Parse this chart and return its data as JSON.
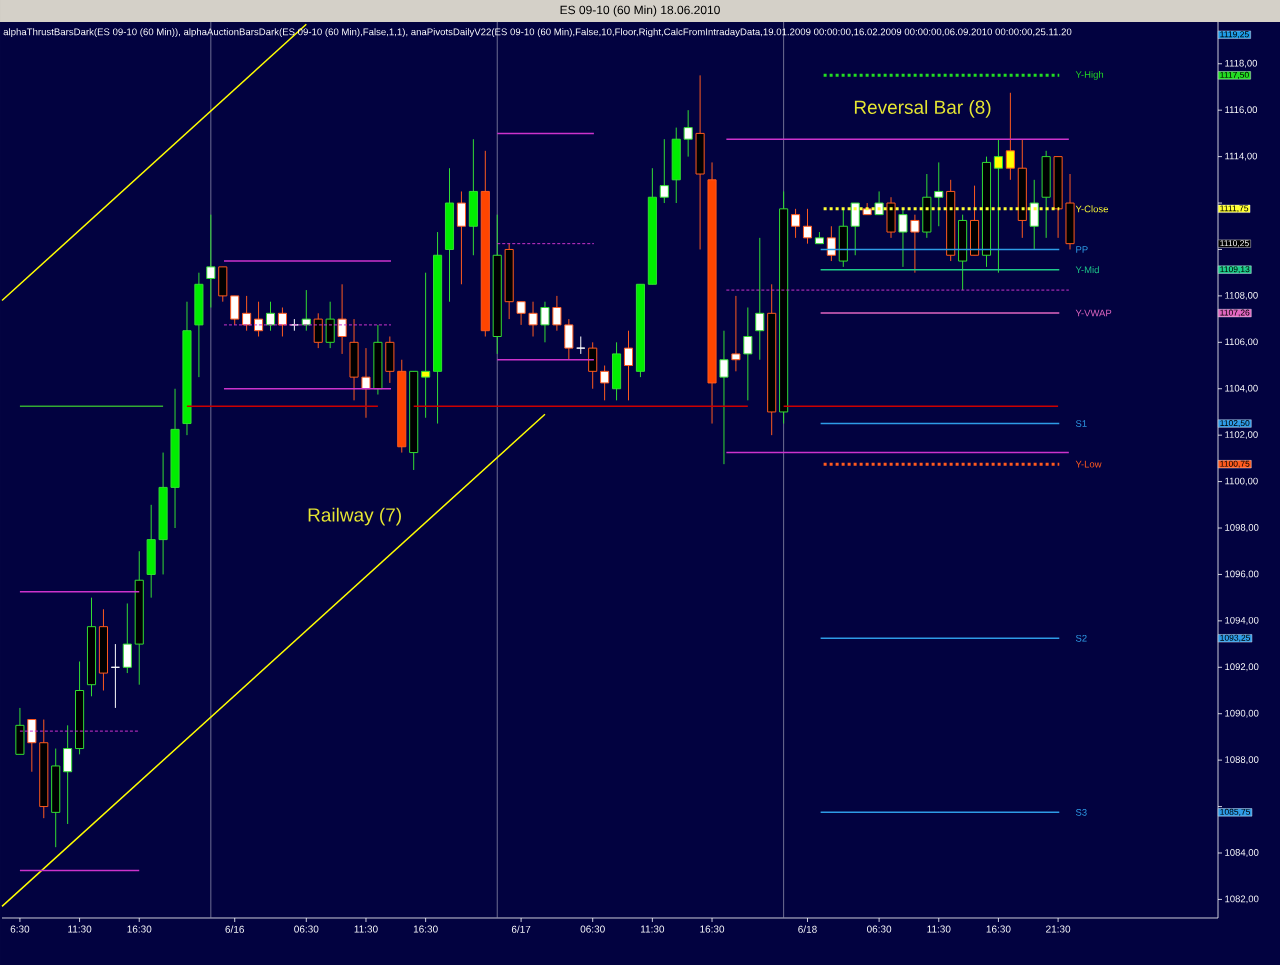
{
  "chart_data": {
    "type": "candlestick",
    "title": "ES 09-10 (60 Min)  18.06.2010",
    "subtitle": "alphaThrustBarsDark(ES 09-10 (60 Min)), alphaAuctionBarsDark(ES 09-10 (60 Min),False,1,1), anaPivotsDailyV22(ES 09-10 (60 Min),False,10,Floor,Right,CalcFromIntradayData,19.01.2009 00:00:00,16.02.2009 00:00:00,06.09.2010 00:00:00,25.11.20",
    "x": [
      "2010-06-15T06:30",
      "2010-06-15T07:30",
      "2010-06-15T08:30",
      "2010-06-15T09:30",
      "2010-06-15T10:30",
      "2010-06-15T11:30",
      "2010-06-15T12:30",
      "2010-06-15T13:30",
      "2010-06-15T14:30",
      "2010-06-15T15:30",
      "2010-06-15T16:30",
      "2010-06-15T17:30",
      "2010-06-15T18:30",
      "2010-06-15T19:30",
      "2010-06-15T20:30",
      "2010-06-15T21:30",
      "2010-06-15T22:30",
      "2010-06-15T23:30",
      "2010-06-16T00:30",
      "2010-06-16T01:30",
      "2010-06-16T02:30",
      "2010-06-16T03:30",
      "2010-06-16T04:30",
      "2010-06-16T05:30",
      "2010-06-16T06:30",
      "2010-06-16T07:30",
      "2010-06-16T08:30",
      "2010-06-16T09:30",
      "2010-06-16T10:30",
      "2010-06-16T11:30",
      "2010-06-16T12:30",
      "2010-06-16T13:30",
      "2010-06-16T14:30",
      "2010-06-16T15:30",
      "2010-06-16T16:30",
      "2010-06-16T17:30",
      "2010-06-16T18:30",
      "2010-06-16T19:30",
      "2010-06-16T20:30",
      "2010-06-16T21:30",
      "2010-06-16T22:30",
      "2010-06-16T23:30",
      "2010-06-17T00:30",
      "2010-06-17T01:30",
      "2010-06-17T02:30",
      "2010-06-17T03:30",
      "2010-06-17T04:30",
      "2010-06-17T05:30",
      "2010-06-17T06:30",
      "2010-06-17T07:30",
      "2010-06-17T08:30",
      "2010-06-17T09:30",
      "2010-06-17T10:30",
      "2010-06-17T11:30",
      "2010-06-17T12:30",
      "2010-06-17T13:30",
      "2010-06-17T14:30",
      "2010-06-17T15:30",
      "2010-06-17T16:30",
      "2010-06-17T17:30",
      "2010-06-17T18:30",
      "2010-06-17T19:30",
      "2010-06-17T20:30",
      "2010-06-17T21:30",
      "2010-06-17T22:30",
      "2010-06-17T23:30",
      "2010-06-18T00:30",
      "2010-06-18T01:30",
      "2010-06-18T02:30",
      "2010-06-18T03:30",
      "2010-06-18T04:30",
      "2010-06-18T05:30",
      "2010-06-18T06:30",
      "2010-06-18T07:30",
      "2010-06-18T08:30",
      "2010-06-18T09:30",
      "2010-06-18T10:30",
      "2010-06-18T11:30",
      "2010-06-18T12:30",
      "2010-06-18T13:30",
      "2010-06-18T14:30",
      "2010-06-18T15:30",
      "2010-06-18T16:30",
      "2010-06-18T17:30",
      "2010-06-18T18:30",
      "2010-06-18T19:30",
      "2010-06-18T20:30",
      "2010-06-18T21:30",
      "2010-06-18T22:30"
    ],
    "ohlc": [
      [
        1088.25,
        1090.25,
        1088.25,
        1089.5
      ],
      [
        1089.75,
        1089.75,
        1087.5,
        1088.75
      ],
      [
        1088.75,
        1089.75,
        1085.5,
        1086.0
      ],
      [
        1085.75,
        1088.5,
        1084.25,
        1087.75
      ],
      [
        1087.5,
        1089.5,
        1085.25,
        1088.5
      ],
      [
        1088.5,
        1092.25,
        1088.25,
        1091.0
      ],
      [
        1091.25,
        1095.0,
        1090.75,
        1093.75
      ],
      [
        1093.75,
        1094.5,
        1091.0,
        1091.75
      ],
      [
        1092.0,
        1093.0,
        1090.25,
        1092.0
      ],
      [
        1092.0,
        1094.75,
        1091.75,
        1093.0
      ],
      [
        1093.0,
        1097.0,
        1091.25,
        1095.75
      ],
      [
        1096.0,
        1099.0,
        1095.0,
        1097.5
      ],
      [
        1097.5,
        1101.25,
        1096.0,
        1099.75
      ],
      [
        1099.75,
        1104.0,
        1098.0,
        1102.25
      ],
      [
        1102.5,
        1107.75,
        1102.0,
        1106.5
      ],
      [
        1106.75,
        1109.0,
        1104.5,
        1108.5
      ],
      [
        1108.75,
        1111.5,
        1107.5,
        1109.25
      ],
      [
        1109.25,
        1109.25,
        1107.75,
        1108.0
      ],
      [
        1108.0,
        1108.0,
        1106.75,
        1107.0
      ],
      [
        1107.25,
        1108.0,
        1106.5,
        1106.75
      ],
      [
        1107.0,
        1107.75,
        1106.25,
        1106.5
      ],
      [
        1106.75,
        1107.75,
        1106.5,
        1107.25
      ],
      [
        1107.25,
        1107.5,
        1106.25,
        1106.75
      ],
      [
        1106.75,
        1107.0,
        1106.5,
        1106.75
      ],
      [
        1106.75,
        1108.25,
        1106.5,
        1107.0
      ],
      [
        1107.0,
        1107.25,
        1105.75,
        1106.0
      ],
      [
        1106.0,
        1107.75,
        1105.75,
        1107.0
      ],
      [
        1107.0,
        1108.5,
        1105.5,
        1106.25
      ],
      [
        1106.0,
        1107.0,
        1103.5,
        1104.5
      ],
      [
        1104.5,
        1105.75,
        1102.75,
        1104.0
      ],
      [
        1104.0,
        1106.75,
        1103.75,
        1106.0
      ],
      [
        1106.0,
        1106.25,
        1104.25,
        1104.75
      ],
      [
        1104.75,
        1105.25,
        1101.25,
        1101.5
      ],
      [
        1101.25,
        1104.75,
        1100.5,
        1104.75
      ],
      [
        1104.5,
        1109.0,
        1102.75,
        1104.75
      ],
      [
        1104.75,
        1110.75,
        1102.5,
        1109.75
      ],
      [
        1110.0,
        1113.5,
        1107.75,
        1112.0
      ],
      [
        1112.0,
        1112.5,
        1108.5,
        1111.0
      ],
      [
        1111.0,
        1114.75,
        1109.75,
        1112.5
      ],
      [
        1112.5,
        1114.25,
        1106.25,
        1106.5
      ],
      [
        1106.25,
        1111.5,
        1105.5,
        1109.75
      ],
      [
        1110.0,
        1110.25,
        1107.0,
        1107.75
      ],
      [
        1107.75,
        1107.75,
        1106.75,
        1107.25
      ],
      [
        1107.25,
        1107.75,
        1106.25,
        1106.75
      ],
      [
        1106.75,
        1107.75,
        1106.0,
        1107.5
      ],
      [
        1107.5,
        1108.0,
        1106.5,
        1106.75
      ],
      [
        1106.75,
        1107.0,
        1105.25,
        1105.75
      ],
      [
        1105.75,
        1106.25,
        1105.5,
        1105.75
      ],
      [
        1105.75,
        1106.0,
        1104.0,
        1104.75
      ],
      [
        1104.75,
        1105.0,
        1103.5,
        1104.25
      ],
      [
        1104.0,
        1106.0,
        1103.5,
        1105.5
      ],
      [
        1105.75,
        1106.5,
        1103.5,
        1105.0
      ],
      [
        1104.75,
        1108.5,
        1104.5,
        1108.5
      ],
      [
        1108.5,
        1113.5,
        1108.5,
        1112.25
      ],
      [
        1112.25,
        1114.75,
        1112.0,
        1112.75
      ],
      [
        1113.0,
        1115.25,
        1112.0,
        1114.75
      ],
      [
        1114.75,
        1116.0,
        1114.0,
        1115.25
      ],
      [
        1115.0,
        1117.5,
        1110.0,
        1113.25
      ],
      [
        1113.0,
        1113.75,
        1102.5,
        1104.25
      ],
      [
        1104.5,
        1106.5,
        1100.75,
        1105.25
      ],
      [
        1105.5,
        1108.0,
        1104.75,
        1105.25
      ],
      [
        1105.5,
        1107.5,
        1103.5,
        1106.25
      ],
      [
        1106.5,
        1110.5,
        1105.25,
        1107.25
      ],
      [
        1107.25,
        1108.5,
        1102.0,
        1103.0
      ],
      [
        1103.0,
        1112.5,
        1102.5,
        1111.75
      ],
      [
        1111.5,
        1111.75,
        1110.5,
        1111.0
      ],
      [
        1111.0,
        1111.75,
        1110.25,
        1110.5
      ],
      [
        1110.25,
        1110.75,
        1110.25,
        1110.5
      ],
      [
        1110.5,
        1111.0,
        1109.5,
        1109.75
      ],
      [
        1109.5,
        1111.75,
        1109.25,
        1111.0
      ],
      [
        1111.0,
        1112.0,
        1109.75,
        1112.0
      ],
      [
        1111.75,
        1112.0,
        1111.5,
        1111.5
      ],
      [
        1111.5,
        1112.5,
        1111.5,
        1112.0
      ],
      [
        1112.0,
        1112.25,
        1110.5,
        1110.75
      ],
      [
        1110.75,
        1111.75,
        1109.25,
        1111.5
      ],
      [
        1111.25,
        1111.5,
        1109.0,
        1110.75
      ],
      [
        1110.75,
        1113.25,
        1110.5,
        1112.25
      ],
      [
        1112.25,
        1113.75,
        1111.0,
        1112.5
      ],
      [
        1112.5,
        1113.0,
        1109.5,
        1109.75
      ],
      [
        1109.5,
        1111.5,
        1108.25,
        1111.25
      ],
      [
        1111.25,
        1112.75,
        1109.75,
        1109.75
      ],
      [
        1109.75,
        1114.0,
        1109.25,
        1113.75
      ],
      [
        1113.5,
        1114.75,
        1109.0,
        1114.0
      ],
      [
        1114.25,
        1116.75,
        1113.0,
        1113.5
      ],
      [
        1113.5,
        1114.75,
        1110.5,
        1111.25
      ],
      [
        1111.0,
        1113.0,
        1110.0,
        1112.0
      ],
      [
        1112.25,
        1114.25,
        1110.5,
        1114.0
      ],
      [
        1114.0,
        1114.0,
        1110.5,
        1111.75
      ],
      [
        1112.0,
        1113.25,
        1110.0,
        1110.25
      ]
    ],
    "colors": [
      "#000000",
      "#ffffff",
      "#000000",
      "#000000",
      "#ffffff",
      "#000000",
      "#000000",
      "#000000",
      "#ffffff",
      "#ffffff",
      "#000000",
      "#00ee00",
      "#00ee00",
      "#00ee00",
      "#00ee00",
      "#00ee00",
      "#ffffff",
      "#000000",
      "#ffffff",
      "#ffffff",
      "#ffffff",
      "#ffffff",
      "#ffffff",
      "#ffffff",
      "#ffffff",
      "#000000",
      "#000000",
      "#ffffff",
      "#000000",
      "#ffffff",
      "#000000",
      "#000000",
      "#ff4500",
      "#000000",
      "#ffff00",
      "#00ee00",
      "#00ee00",
      "#ffffff",
      "#00ee00",
      "#ff4500",
      "#000000",
      "#000000",
      "#ffffff",
      "#ffffff",
      "#ffffff",
      "#ffffff",
      "#ffffff",
      "#ffffff",
      "#000000",
      "#ffffff",
      "#00ee00",
      "#ffffff",
      "#00ee00",
      "#00ee00",
      "#ffffff",
      "#00ee00",
      "#ffffff",
      "#000000",
      "#ff4500",
      "#ffffff",
      "#ffffff",
      "#ffffff",
      "#ffffff",
      "#000000",
      "#000000",
      "#ffffff",
      "#ffffff",
      "#ffffff",
      "#ffffff",
      "#000000",
      "#ffffff",
      "#ffffff",
      "#ffffff",
      "#000000",
      "#ffffff",
      "#ffffff",
      "#000000",
      "#ffffff",
      "#000000",
      "#000000",
      "#000000",
      "#000000",
      "#ffff00",
      "#ffff00",
      "#000000",
      "#ffffff",
      "#000000",
      "#000000",
      "#000000"
    ],
    "xlim": [
      "2010-06-15T05:00",
      "2010-06-19T10:54"
    ],
    "ylim": [
      1081.2,
      1119.8
    ],
    "xticks": [
      {
        "value": "2010-06-15T06:30",
        "label": "6:30"
      },
      {
        "value": "2010-06-15T11:30",
        "label": "11:30"
      },
      {
        "value": "2010-06-15T16:30",
        "label": "16:30"
      },
      {
        "value": "2010-06-16T00:30",
        "label": "6/16"
      },
      {
        "value": "2010-06-16T06:30",
        "label": "06:30"
      },
      {
        "value": "2010-06-16T11:30",
        "label": "11:30"
      },
      {
        "value": "2010-06-16T16:30",
        "label": "16:30"
      },
      {
        "value": "2010-06-17T00:30",
        "label": "6/17"
      },
      {
        "value": "2010-06-17T06:30",
        "label": "06:30"
      },
      {
        "value": "2010-06-17T11:30",
        "label": "11:30"
      },
      {
        "value": "2010-06-17T16:30",
        "label": "16:30"
      },
      {
        "value": "2010-06-18T00:30",
        "label": "6/18"
      },
      {
        "value": "2010-06-18T06:30",
        "label": "06:30"
      },
      {
        "value": "2010-06-18T11:30",
        "label": "11:30"
      },
      {
        "value": "2010-06-18T16:30",
        "label": "16:30"
      },
      {
        "value": "2010-06-18T21:30",
        "label": "21:30"
      }
    ],
    "yticks": [
      {
        "value": 1082,
        "label": "1082,00"
      },
      {
        "value": 1084,
        "label": "1084,00"
      },
      {
        "value": 1086,
        "label": null
      },
      {
        "value": 1088,
        "label": "1088,00"
      },
      {
        "value": 1090,
        "label": "1090,00"
      },
      {
        "value": 1092,
        "label": "1092,00"
      },
      {
        "value": 1094,
        "label": "1094,00"
      },
      {
        "value": 1096,
        "label": "1096,00"
      },
      {
        "value": 1098,
        "label": "1098,00"
      },
      {
        "value": 1100,
        "label": "1100,00"
      },
      {
        "value": 1102,
        "label": "1102,00"
      },
      {
        "value": 1104,
        "label": "1104,00"
      },
      {
        "value": 1106,
        "label": "1106,00"
      },
      {
        "value": 1108,
        "label": "1108,00"
      },
      {
        "value": 1110,
        "label": null
      },
      {
        "value": 1112,
        "label": null
      },
      {
        "value": 1114,
        "label": "1114,00"
      },
      {
        "value": 1116,
        "label": "1116,00"
      },
      {
        "value": 1118,
        "label": "1118,00"
      }
    ],
    "series": [
      {
        "type": "line",
        "x": [
          "2010-06-15T05:00",
          "2010-06-16T06:30"
        ],
        "values": [
          1107.8,
          1119.7
        ],
        "color": "#ffff00"
      },
      {
        "type": "line",
        "x": [
          "2010-06-15T05:00",
          "2010-06-17T02:30"
        ],
        "values": [
          1081.7,
          1102.9
        ],
        "color": "#ffff00"
      },
      {
        "type": "line",
        "x": [
          "2010-06-15T06:30",
          "2010-06-15T18:30"
        ],
        "values": [
          1103.25,
          1103.25
        ],
        "color": "#33aa33"
      },
      {
        "type": "line",
        "x": [
          "2010-06-15T20:30",
          "2010-06-16T12:30",
          "2010-06-16T14:00",
          "2010-06-16T15:30",
          "2010-06-17T19:30",
          "2010-06-17T21:00",
          "2010-06-17T22:30",
          "2010-06-18T21:30"
        ],
        "values": [
          1103.25,
          1103.25,
          null,
          1103.25,
          1103.25,
          null,
          1103.25,
          1103.25
        ],
        "color": "#cc0000"
      },
      {
        "type": "line",
        "x": [
          "2010-06-15T06:30",
          "2010-06-15T16:30"
        ],
        "values": [
          1095.25,
          1095.25
        ],
        "color": "#cc33cc"
      },
      {
        "type": "line",
        "x": [
          "2010-06-15T06:30",
          "2010-06-15T16:30"
        ],
        "values": [
          1089.25,
          1089.25
        ],
        "color": "#cc33cc",
        "line_style": "dashed"
      },
      {
        "type": "line",
        "x": [
          "2010-06-15T06:30",
          "2010-06-15T16:30"
        ],
        "values": [
          1083.25,
          1083.25
        ],
        "color": "#cc33cc"
      },
      {
        "type": "line",
        "x": [
          "2010-06-15T23:36",
          "2010-06-16T13:36"
        ],
        "values": [
          1109.5,
          1109.5
        ],
        "color": "#cc33cc"
      },
      {
        "type": "line",
        "x": [
          "2010-06-15T23:36",
          "2010-06-16T13:36"
        ],
        "values": [
          1106.75,
          1106.75
        ],
        "color": "#cc33cc",
        "line_style": "dashed"
      },
      {
        "type": "line",
        "x": [
          "2010-06-15T23:36",
          "2010-06-16T13:36"
        ],
        "values": [
          1104.0,
          1104.0
        ],
        "color": "#cc33cc"
      },
      {
        "type": "line",
        "x": [
          "2010-06-16T22:30",
          "2010-06-17T06:36"
        ],
        "values": [
          1115.0,
          1115.0
        ],
        "color": "#cc33cc"
      },
      {
        "type": "line",
        "x": [
          "2010-06-16T22:30",
          "2010-06-17T06:36"
        ],
        "values": [
          1110.25,
          1110.25
        ],
        "color": "#cc33cc",
        "line_style": "dashed"
      },
      {
        "type": "line",
        "x": [
          "2010-06-16T22:30",
          "2010-06-17T06:36"
        ],
        "values": [
          1105.25,
          1105.25
        ],
        "color": "#cc33cc"
      },
      {
        "type": "line",
        "x": [
          "2010-06-17T17:42",
          "2010-06-18T22:24"
        ],
        "values": [
          1114.75,
          1114.75
        ],
        "color": "#cc33cc"
      },
      {
        "type": "line",
        "x": [
          "2010-06-17T17:42",
          "2010-06-18T22:24"
        ],
        "values": [
          1108.25,
          1108.25
        ],
        "color": "#cc33cc",
        "line_style": "dashed"
      },
      {
        "type": "line",
        "x": [
          "2010-06-17T17:42",
          "2010-06-18T22:24"
        ],
        "values": [
          1101.25,
          1101.25
        ],
        "color": "#cc33cc"
      },
      {
        "type": "line",
        "name": "Y-High",
        "x": [
          "2010-06-18T01:36",
          "2010-06-18T21:36"
        ],
        "values": [
          1117.5,
          1117.5
        ],
        "color": "#22dd22",
        "line_style": "dotted"
      },
      {
        "type": "line",
        "name": "Y-Close",
        "x": [
          "2010-06-18T01:36",
          "2010-06-18T21:36"
        ],
        "values": [
          1111.75,
          1111.75
        ],
        "color": "#ffff33",
        "line_style": "dotted"
      },
      {
        "type": "line",
        "name": "PP",
        "x": [
          "2010-06-18T01:36",
          "2010-06-18T21:36"
        ],
        "values": [
          1110.0,
          1110.0
        ],
        "color": "#2e9be6"
      },
      {
        "type": "line",
        "name": "Y-Mid",
        "x": [
          "2010-06-18T01:36",
          "2010-06-18T21:36"
        ],
        "values": [
          1109.13,
          1109.13
        ],
        "color": "#1ecc8a"
      },
      {
        "type": "line",
        "name": "Y-VWAP",
        "x": [
          "2010-06-18T01:36",
          "2010-06-18T21:36"
        ],
        "values": [
          1107.26,
          1107.26
        ],
        "color": "#e066c0"
      },
      {
        "type": "line",
        "name": "S1",
        "x": [
          "2010-06-18T01:36",
          "2010-06-18T21:36"
        ],
        "values": [
          1102.5,
          1102.5
        ],
        "color": "#2e9be6"
      },
      {
        "type": "line",
        "name": "Y-Low",
        "x": [
          "2010-06-18T01:36",
          "2010-06-18T21:36"
        ],
        "values": [
          1100.75,
          1100.75
        ],
        "color": "#ff5a1e",
        "line_style": "dotted"
      },
      {
        "type": "line",
        "name": "S2",
        "x": [
          "2010-06-18T01:36",
          "2010-06-18T21:36"
        ],
        "values": [
          1093.25,
          1093.25
        ],
        "color": "#2e9be6"
      },
      {
        "type": "line",
        "name": "S3",
        "x": [
          "2010-06-18T01:36",
          "2010-06-18T21:36"
        ],
        "values": [
          1085.75,
          1085.75
        ],
        "color": "#2e9be6"
      }
    ],
    "ref_lines": [
      {
        "axis": "x",
        "value": "2010-06-15T22:30",
        "color": "#8c8ca8"
      },
      {
        "axis": "x",
        "value": "2010-06-16T22:30",
        "color": "#8c8ca8"
      },
      {
        "axis": "x",
        "value": "2010-06-17T22:30",
        "color": "#8c8ca8"
      }
    ],
    "annotations": [
      "Railway (7)",
      "Reversal Bar (8)",
      "1119,25",
      "1117,50",
      "1111,75",
      "1110,25",
      "1109,13",
      "1107,26",
      "1102,50",
      "1100,75",
      "1093,25",
      "1085,75"
    ]
  }
}
